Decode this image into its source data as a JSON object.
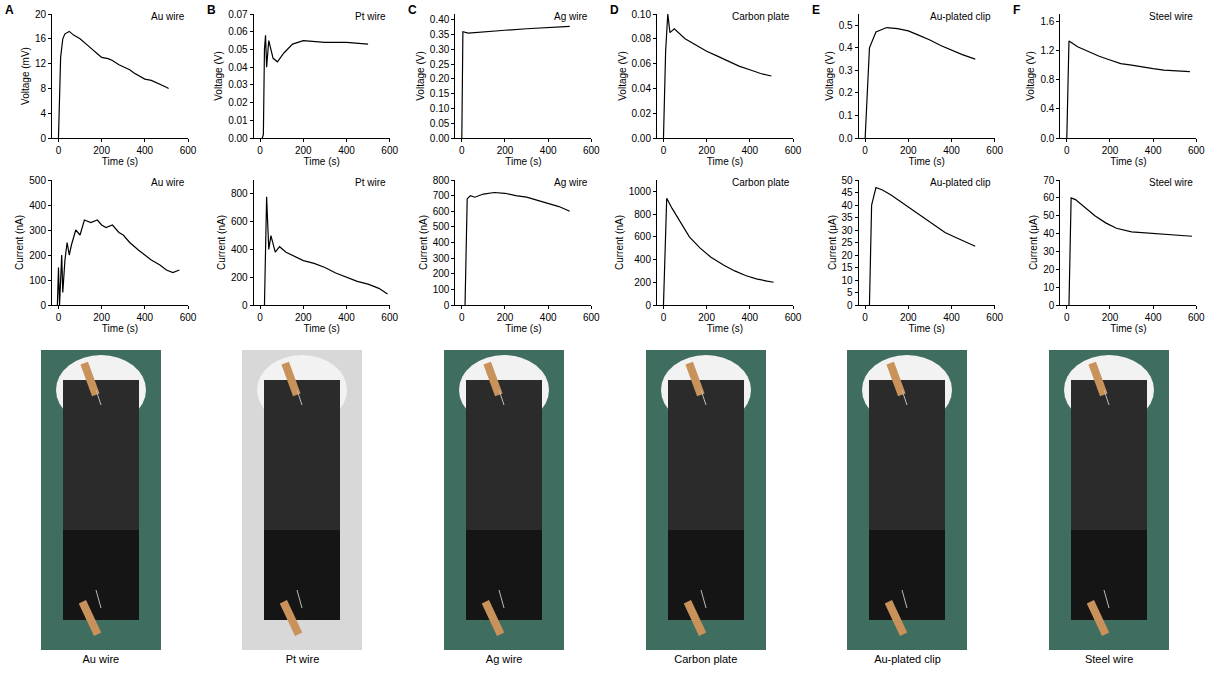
{
  "chart_data": [
    {
      "type": "line",
      "panel": "A",
      "annotation": "Au wire",
      "xlabel": "Time (s)",
      "ylabel": "Voltage (mV)",
      "color": "#000000",
      "x": [
        0,
        5,
        10,
        20,
        30,
        50,
        70,
        100,
        130,
        150,
        180,
        200,
        230,
        250,
        280,
        300,
        330,
        350,
        380,
        400,
        430,
        450,
        480,
        500,
        510
      ],
      "values": [
        0,
        8,
        13,
        16,
        16.8,
        17.2,
        16.6,
        16,
        15,
        14.5,
        13.6,
        13,
        12.8,
        12.5,
        11.8,
        11.5,
        11,
        10.5,
        9.9,
        9.5,
        9.3,
        9,
        8.6,
        8.2,
        8
      ],
      "xlim": [
        -30,
        600
      ],
      "ylim": [
        0,
        20
      ],
      "xticks": [
        0,
        200,
        400,
        600
      ],
      "yticks": [
        0,
        4,
        8,
        12,
        16,
        20
      ]
    },
    {
      "type": "line",
      "annotation": "Au wire",
      "xlabel": "Time (s)",
      "ylabel": "Current (nA)",
      "color": "#000000",
      "x": [
        -5,
        0,
        5,
        10,
        15,
        20,
        30,
        40,
        50,
        60,
        80,
        100,
        120,
        150,
        180,
        200,
        220,
        250,
        280,
        300,
        330,
        370,
        400,
        430,
        470,
        500,
        530,
        560
      ],
      "values": [
        0,
        150,
        0,
        120,
        200,
        50,
        180,
        250,
        200,
        240,
        300,
        280,
        340,
        330,
        340,
        320,
        310,
        320,
        290,
        280,
        250,
        220,
        200,
        180,
        160,
        140,
        130,
        140
      ],
      "xlim": [
        -30,
        600
      ],
      "ylim": [
        0,
        500
      ],
      "xticks": [
        0,
        200,
        400,
        600
      ],
      "yticks": [
        0,
        100,
        200,
        300,
        400,
        500
      ]
    },
    {
      "type": "line",
      "panel": "B",
      "annotation": "Pt wire",
      "xlabel": "Time (s)",
      "ylabel": "Voltage (V)",
      "color": "#000000",
      "x": [
        10,
        15,
        20,
        25,
        30,
        40,
        60,
        80,
        110,
        150,
        200,
        300,
        400,
        500
      ],
      "values": [
        0,
        0.002,
        0.05,
        0.058,
        0.04,
        0.055,
        0.045,
        0.043,
        0.048,
        0.053,
        0.055,
        0.054,
        0.054,
        0.053
      ],
      "xlim": [
        -30,
        600
      ],
      "ylim": [
        0,
        0.07
      ],
      "xticks": [
        0,
        200,
        400,
        600
      ],
      "yticks": [
        {
          "value": 0,
          "label": "0.00"
        },
        {
          "value": 0.01,
          "label": "0.01"
        },
        {
          "value": 0.02,
          "label": "0.02"
        },
        {
          "value": 0.03,
          "label": "0.03"
        },
        {
          "value": 0.04,
          "label": "0.04"
        },
        {
          "value": 0.05,
          "label": "0.05"
        },
        {
          "value": 0.06,
          "label": "0.06"
        },
        {
          "value": 0.07,
          "label": "0.07"
        }
      ]
    },
    {
      "type": "line",
      "annotation": "Pt wire",
      "xlabel": "Time (s)",
      "ylabel": "Current (nA)",
      "color": "#000000",
      "x": [
        20,
        30,
        40,
        50,
        70,
        90,
        120,
        160,
        200,
        250,
        300,
        350,
        400,
        450,
        500,
        550,
        590
      ],
      "values": [
        0,
        780,
        400,
        500,
        380,
        420,
        380,
        350,
        320,
        300,
        270,
        230,
        200,
        170,
        150,
        120,
        80
      ],
      "xlim": [
        -30,
        600
      ],
      "ylim": [
        0,
        900
      ],
      "xticks": [
        0,
        200,
        400,
        600
      ],
      "yticks": [
        0,
        200,
        400,
        600,
        800
      ]
    },
    {
      "type": "line",
      "panel": "C",
      "annotation": "Ag wire",
      "xlabel": "Time (s)",
      "ylabel": "Voltage (V)",
      "color": "#000000",
      "x": [
        0,
        5,
        30,
        100,
        200,
        300,
        400,
        500
      ],
      "values": [
        0,
        0.36,
        0.355,
        0.36,
        0.365,
        0.37,
        0.375,
        0.378
      ],
      "xlim": [
        -30,
        600
      ],
      "ylim": [
        0,
        0.42
      ],
      "xticks": [
        0,
        200,
        400,
        600
      ],
      "yticks": [
        {
          "value": 0,
          "label": "0.00"
        },
        {
          "value": 0.05,
          "label": "0.05"
        },
        {
          "value": 0.1,
          "label": "0.10"
        },
        {
          "value": 0.15,
          "label": "0.15"
        },
        {
          "value": 0.2,
          "label": "0.20"
        },
        {
          "value": 0.25,
          "label": "0.25"
        },
        {
          "value": 0.3,
          "label": "0.30"
        },
        {
          "value": 0.35,
          "label": "0.35"
        },
        {
          "value": 0.4,
          "label": "0.40"
        }
      ]
    },
    {
      "type": "line",
      "annotation": "Ag wire",
      "xlabel": "Time (s)",
      "ylabel": "Current (nA)",
      "color": "#000000",
      "x": [
        15,
        25,
        40,
        60,
        100,
        150,
        200,
        250,
        300,
        350,
        400,
        450,
        500
      ],
      "values": [
        0,
        680,
        700,
        690,
        710,
        720,
        715,
        700,
        690,
        670,
        650,
        630,
        600
      ],
      "xlim": [
        -30,
        600
      ],
      "ylim": [
        0,
        800
      ],
      "xticks": [
        0,
        200,
        400,
        600
      ],
      "yticks": [
        0,
        100,
        200,
        300,
        400,
        500,
        600,
        700,
        800
      ]
    },
    {
      "type": "line",
      "panel": "D",
      "annotation": "Carbon plate",
      "xlabel": "Time (s)",
      "ylabel": "Voltage (V)",
      "color": "#000000",
      "x": [
        0,
        10,
        20,
        30,
        50,
        80,
        100,
        150,
        200,
        250,
        300,
        350,
        400,
        450,
        500
      ],
      "values": [
        0,
        0.07,
        0.1,
        0.085,
        0.088,
        0.083,
        0.08,
        0.075,
        0.07,
        0.066,
        0.062,
        0.058,
        0.055,
        0.052,
        0.05
      ],
      "xlim": [
        -30,
        600
      ],
      "ylim": [
        0,
        0.1
      ],
      "xticks": [
        0,
        200,
        400,
        600
      ],
      "yticks": [
        {
          "value": 0,
          "label": "0.00"
        },
        {
          "value": 0.02,
          "label": "0.02"
        },
        {
          "value": 0.04,
          "label": "0.04"
        },
        {
          "value": 0.06,
          "label": "0.06"
        },
        {
          "value": 0.08,
          "label": "0.08"
        },
        {
          "value": 0.1,
          "label": "0.10"
        }
      ]
    },
    {
      "type": "line",
      "annotation": "Carbon plate",
      "xlabel": "Time (s)",
      "ylabel": "Current (nA)",
      "color": "#000000",
      "x": [
        0,
        15,
        40,
        80,
        120,
        170,
        220,
        280,
        330,
        380,
        430,
        480,
        510
      ],
      "values": [
        0,
        940,
        850,
        720,
        600,
        500,
        420,
        350,
        300,
        260,
        230,
        210,
        200
      ],
      "xlim": [
        -30,
        600
      ],
      "ylim": [
        0,
        1100
      ],
      "xticks": [
        0,
        200,
        400,
        600
      ],
      "yticks": [
        0,
        200,
        400,
        600,
        800,
        1000
      ]
    },
    {
      "type": "line",
      "panel": "E",
      "annotation": "Au-plated clip",
      "xlabel": "Time (s)",
      "ylabel": "Voltage (V)",
      "color": "#000000",
      "x": [
        0,
        20,
        50,
        100,
        150,
        200,
        250,
        300,
        350,
        400,
        450,
        510
      ],
      "values": [
        0,
        0.4,
        0.47,
        0.49,
        0.485,
        0.475,
        0.455,
        0.435,
        0.41,
        0.39,
        0.37,
        0.35
      ],
      "xlim": [
        -30,
        600
      ],
      "ylim": [
        0,
        0.55
      ],
      "xticks": [
        0,
        200,
        400,
        600
      ],
      "yticks": [
        {
          "value": 0,
          "label": "0.0"
        },
        {
          "value": 0.1,
          "label": "0.1"
        },
        {
          "value": 0.2,
          "label": "0.2"
        },
        {
          "value": 0.3,
          "label": "0.3"
        },
        {
          "value": 0.4,
          "label": "0.4"
        },
        {
          "value": 0.5,
          "label": "0.5"
        }
      ]
    },
    {
      "type": "line",
      "annotation": "Au-plated clip",
      "xlabel": "Time (s)",
      "ylabel": "Current (μA)",
      "color": "#000000",
      "x": [
        20,
        30,
        50,
        80,
        120,
        170,
        220,
        270,
        320,
        370,
        420,
        470,
        510
      ],
      "values": [
        0,
        40,
        47,
        46,
        44,
        41,
        38,
        35,
        32,
        29,
        27,
        25,
        23.5
      ],
      "xlim": [
        -30,
        600
      ],
      "ylim": [
        0,
        50
      ],
      "xticks": [
        0,
        200,
        400,
        600
      ],
      "yticks": [
        0,
        5,
        10,
        15,
        20,
        25,
        30,
        35,
        40,
        45,
        50
      ]
    },
    {
      "type": "line",
      "panel": "F",
      "annotation": "Steel wire",
      "xlabel": "Time (s)",
      "ylabel": "Voltage (V)",
      "color": "#000000",
      "x": [
        0,
        10,
        50,
        100,
        150,
        200,
        250,
        300,
        350,
        400,
        450,
        500,
        570
      ],
      "values": [
        0,
        1.33,
        1.25,
        1.18,
        1.12,
        1.07,
        1.02,
        1.0,
        0.97,
        0.95,
        0.93,
        0.92,
        0.91
      ],
      "xlim": [
        -30,
        600
      ],
      "ylim": [
        0,
        1.7
      ],
      "xticks": [
        0,
        200,
        400,
        600
      ],
      "yticks": [
        {
          "value": 0,
          "label": "0.0"
        },
        {
          "value": 0.4,
          "label": "0.4"
        },
        {
          "value": 0.8,
          "label": "0.8"
        },
        {
          "value": 1.2,
          "label": "1.2"
        },
        {
          "value": 1.6,
          "label": "1.6"
        }
      ]
    },
    {
      "type": "line",
      "annotation": "Steel wire",
      "xlabel": "Time (s)",
      "ylabel": "Current (μA)",
      "color": "#000000",
      "x": [
        10,
        20,
        40,
        80,
        130,
        180,
        230,
        300,
        350,
        400,
        450,
        500,
        580
      ],
      "values": [
        0,
        60,
        59,
        55,
        50,
        46,
        43,
        41,
        40.5,
        40,
        39.5,
        39,
        38.5
      ],
      "xlim": [
        -30,
        600
      ],
      "ylim": [
        0,
        70
      ],
      "xticks": [
        0,
        200,
        400,
        600
      ],
      "yticks": [
        0,
        10,
        20,
        30,
        40,
        50,
        60,
        70
      ]
    }
  ],
  "photos": {
    "captions": [
      "Au wire",
      "Pt wire",
      "Ag wire",
      "Carbon plate",
      "Au-plated clip",
      "Steel wire"
    ]
  }
}
